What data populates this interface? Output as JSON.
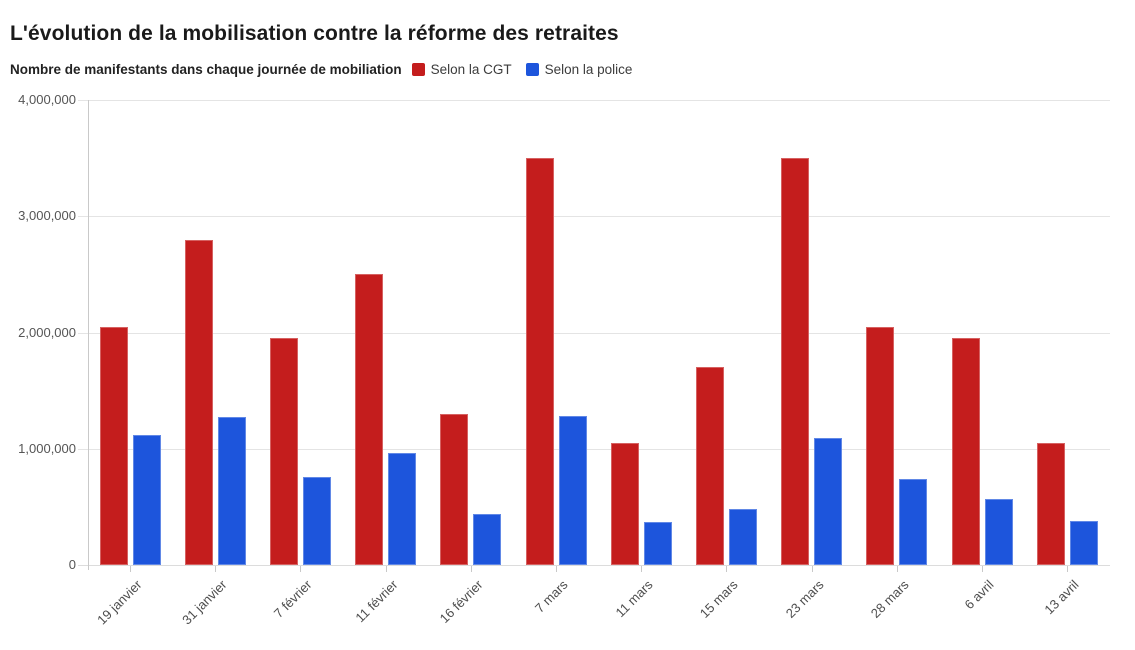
{
  "header": {
    "title": "L'évolution de la mobilisation contre la réforme des retraites",
    "subtitle": "Nombre de manifestants dans chaque journée de mobiliation"
  },
  "legend": {
    "items": [
      {
        "label": "Selon la CGT",
        "color": "#c41d1d"
      },
      {
        "label": "Selon la police",
        "color": "#1d55dc"
      }
    ]
  },
  "chart_data": {
    "type": "bar",
    "title": "L'évolution de la mobilisation contre la réforme des retraites",
    "subtitle": "Nombre de manifestants dans chaque journée de mobiliation",
    "categories": [
      "19 janvier",
      "31 janvier",
      "7 février",
      "11 février",
      "16 février",
      "7 mars",
      "11 mars",
      "15 mars",
      "23 mars",
      "28 mars",
      "6 avril",
      "13 avril"
    ],
    "series": [
      {
        "name": "Selon la CGT",
        "color": "#c41d1d",
        "values": [
          2050000,
          2800000,
          1950000,
          2500000,
          1300000,
          3500000,
          1050000,
          1700000,
          3500000,
          2050000,
          1950000,
          1050000
        ]
      },
      {
        "name": "Selon la police",
        "color": "#1d55dc",
        "values": [
          1120000,
          1270000,
          760000,
          960000,
          440000,
          1280000,
          370000,
          480000,
          1090000,
          740000,
          570000,
          380000
        ]
      }
    ],
    "xlabel": "",
    "ylabel": "",
    "ylim": [
      0,
      4000000
    ],
    "yticks": [
      0,
      1000000,
      2000000,
      3000000,
      4000000
    ],
    "ytick_labels": [
      "0",
      "1,000,000",
      "2,000,000",
      "3,000,000",
      "4,000,000"
    ],
    "grid": "horizontal",
    "legend_position": "top-inline-with-subtitle",
    "xlabel_rotation_deg": -45
  }
}
